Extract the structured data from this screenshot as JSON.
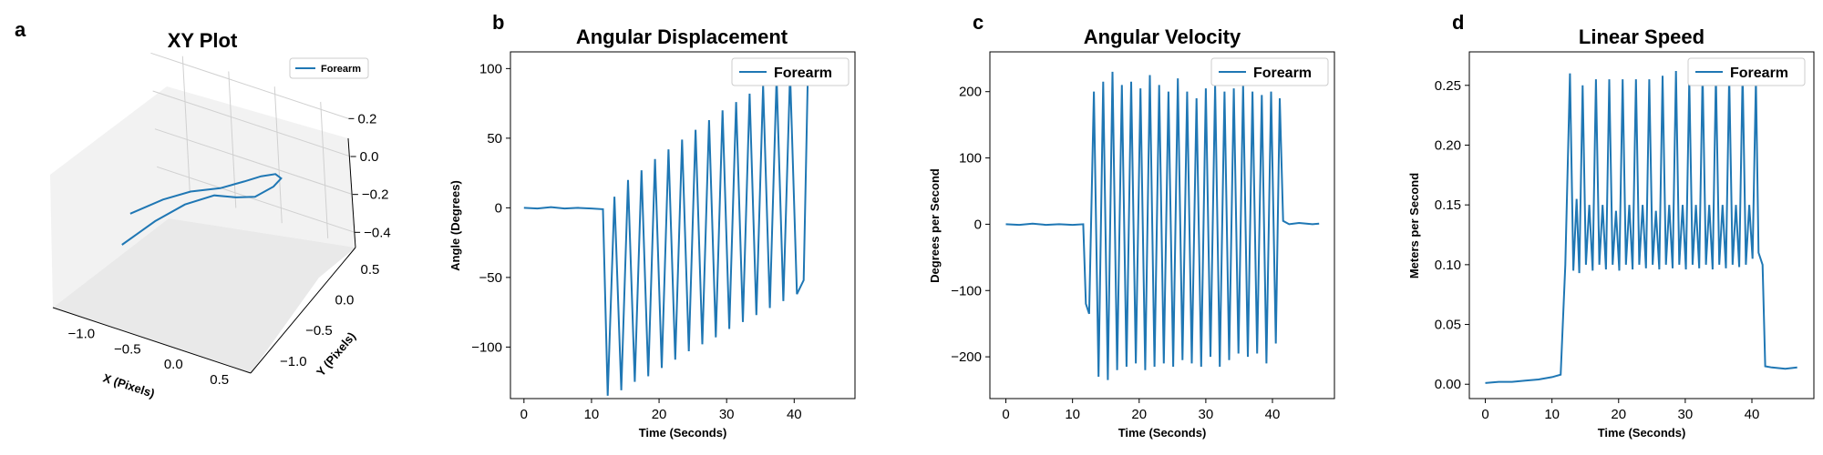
{
  "chart_data": [
    {
      "panel_label": "a",
      "type": "line",
      "projection": "3d",
      "title": "XY Plot",
      "xlabel": "X (Pixels)",
      "ylabel": "Y (Pixels)",
      "zlabel": "",
      "x_ticks": [
        "−1.0",
        "−0.5",
        "0.0",
        "0.5"
      ],
      "y_ticks": [
        "−1.0",
        "−0.5",
        "0.0",
        "0.5"
      ],
      "z_ticks": [
        "−0.4",
        "−0.2",
        "0.0",
        "0.2"
      ],
      "xlim": [
        -1.35,
        0.8
      ],
      "ylim": [
        -1.3,
        0.75
      ],
      "zlim": [
        -0.48,
        0.24
      ],
      "legend": [
        "Forearm"
      ],
      "legend_position": "top-right",
      "series": [
        {
          "name": "Forearm",
          "color": "#1f77b4",
          "x": [
            -1.1,
            -0.85,
            -0.6,
            -0.3,
            0.0,
            0.25,
            0.5,
            0.65,
            0.5,
            0.2,
            -0.1,
            -0.4,
            -0.7,
            -0.95,
            -1.15
          ],
          "y": [
            -0.2,
            0.0,
            0.1,
            0.15,
            0.1,
            0.0,
            -0.15,
            -0.3,
            -0.2,
            -0.05,
            0.1,
            0.2,
            0.15,
            0.0,
            -0.3
          ],
          "z": [
            -0.3,
            -0.25,
            -0.2,
            -0.15,
            -0.05,
            0.05,
            0.15,
            0.2,
            0.1,
            -0.05,
            -0.15,
            -0.22,
            -0.3,
            -0.38,
            -0.44
          ]
        }
      ]
    },
    {
      "panel_label": "b",
      "type": "line",
      "title": "Angular Displacement",
      "xlabel": "Time (Seconds)",
      "ylabel": "Angle (Degrees)",
      "xlim": [
        -2,
        49
      ],
      "ylim": [
        -137,
        112
      ],
      "x_ticks": [
        0,
        10,
        20,
        30,
        40
      ],
      "y_ticks": [
        100,
        50,
        0,
        -50,
        -100
      ],
      "y_tick_labels": [
        "100",
        "50",
        "0",
        "−50",
        "−100"
      ],
      "legend": [
        "Forearm"
      ],
      "legend_position": "top-right",
      "series": [
        {
          "name": "Forearm",
          "color": "#1f77b4",
          "x": [
            0,
            2,
            4,
            6,
            8,
            10,
            11.7,
            12.4,
            13.4,
            14.4,
            15.4,
            16.4,
            17.4,
            18.4,
            19.4,
            20.4,
            21.4,
            22.4,
            23.4,
            24.4,
            25.4,
            26.4,
            27.4,
            28.4,
            29.4,
            30.4,
            31.4,
            32.4,
            33.4,
            34.4,
            35.4,
            36.4,
            37.4,
            38.4,
            39.4,
            40.4,
            41.4,
            42.0
          ],
          "y": [
            0,
            -0.5,
            0.5,
            -0.5,
            0,
            -0.5,
            -1,
            -135,
            8,
            -131,
            20,
            -125,
            27,
            -121,
            35,
            -115,
            42,
            -109,
            49,
            -103,
            56,
            -98,
            63,
            -93,
            70,
            -87,
            76,
            -82,
            82,
            -77,
            88,
            -72,
            94,
            -67,
            97,
            -62,
            -52,
            90
          ]
        }
      ]
    },
    {
      "panel_label": "c",
      "type": "line",
      "title": "Angular Velocity",
      "xlabel": "Time (Seconds)",
      "ylabel": "Degrees per Second",
      "xlim": [
        -2.4,
        49.3
      ],
      "ylim": [
        -263,
        260
      ],
      "x_ticks": [
        0,
        10,
        20,
        30,
        40
      ],
      "y_ticks": [
        200,
        100,
        0,
        -100,
        -200
      ],
      "y_tick_labels": [
        "200",
        "100",
        "0",
        "−100",
        "−200"
      ],
      "legend": [
        "Forearm"
      ],
      "legend_position": "top-right",
      "series": [
        {
          "name": "Forearm",
          "color": "#1f77b4",
          "x": [
            0,
            2,
            4,
            6,
            8,
            10,
            11.6,
            12.0,
            12.5,
            13.2,
            13.9,
            14.6,
            15.3,
            16.0,
            16.7,
            17.4,
            18.1,
            18.8,
            19.5,
            20.2,
            20.9,
            21.6,
            22.3,
            23.0,
            23.7,
            24.4,
            25.1,
            25.8,
            26.5,
            27.2,
            27.9,
            28.6,
            29.3,
            30.0,
            30.7,
            31.4,
            32.1,
            32.8,
            33.5,
            34.2,
            34.9,
            35.6,
            36.3,
            37.0,
            37.7,
            38.4,
            39.1,
            39.8,
            40.5,
            41.1,
            41.6,
            42.5,
            44,
            46,
            47
          ],
          "y": [
            0,
            -1,
            1,
            -1,
            0,
            -1,
            0,
            -120,
            -135,
            200,
            -230,
            215,
            -235,
            230,
            -220,
            210,
            -215,
            215,
            -210,
            205,
            -220,
            225,
            -215,
            210,
            -210,
            200,
            -215,
            220,
            -205,
            200,
            -210,
            190,
            -215,
            205,
            -200,
            210,
            -215,
            200,
            -205,
            205,
            -195,
            210,
            -200,
            200,
            -195,
            195,
            -210,
            200,
            -180,
            190,
            5,
            0,
            2,
            0,
            1
          ]
        }
      ]
    },
    {
      "panel_label": "d",
      "type": "line",
      "title": "Linear Speed",
      "xlabel": "Time (Seconds)",
      "ylabel": "Meters per Second",
      "xlim": [
        -2.4,
        49.3
      ],
      "ylim": [
        -0.012,
        0.278
      ],
      "x_ticks": [
        0,
        10,
        20,
        30,
        40
      ],
      "y_ticks": [
        0.25,
        0.2,
        0.15,
        0.1,
        0.05,
        0.0
      ],
      "y_tick_labels": [
        "0.25",
        "0.20",
        "0.15",
        "0.10",
        "0.05",
        "0.00"
      ],
      "legend": [
        "Forearm"
      ],
      "legend_position": "top-right",
      "series": [
        {
          "name": "Forearm",
          "color": "#1f77b4",
          "x": [
            0,
            2,
            4,
            6,
            8,
            10,
            11.3,
            12.0,
            12.7,
            13.2,
            13.7,
            14.1,
            14.6,
            15.1,
            15.6,
            16.1,
            16.6,
            17.1,
            17.6,
            18.1,
            18.6,
            19.1,
            19.6,
            20.1,
            20.6,
            21.1,
            21.6,
            22.1,
            22.6,
            23.1,
            23.6,
            24.1,
            24.6,
            25.1,
            25.6,
            26.1,
            26.6,
            27.1,
            27.6,
            28.1,
            28.6,
            29.1,
            29.6,
            30.1,
            30.6,
            31.1,
            31.6,
            32.1,
            32.6,
            33.1,
            33.6,
            34.1,
            34.6,
            35.1,
            35.6,
            36.1,
            36.6,
            37.1,
            37.6,
            38.1,
            38.6,
            39.1,
            39.6,
            40.1,
            40.6,
            41.0,
            41.6,
            42.0,
            43,
            45,
            46.8
          ],
          "y": [
            0.001,
            0.002,
            0.002,
            0.003,
            0.004,
            0.006,
            0.008,
            0.1,
            0.26,
            0.095,
            0.155,
            0.093,
            0.25,
            0.1,
            0.15,
            0.095,
            0.255,
            0.1,
            0.15,
            0.096,
            0.255,
            0.1,
            0.145,
            0.095,
            0.255,
            0.1,
            0.15,
            0.096,
            0.255,
            0.1,
            0.15,
            0.097,
            0.255,
            0.1,
            0.145,
            0.096,
            0.258,
            0.1,
            0.15,
            0.097,
            0.262,
            0.1,
            0.15,
            0.096,
            0.255,
            0.1,
            0.15,
            0.097,
            0.26,
            0.1,
            0.15,
            0.096,
            0.258,
            0.1,
            0.15,
            0.097,
            0.258,
            0.1,
            0.15,
            0.098,
            0.26,
            0.1,
            0.15,
            0.105,
            0.255,
            0.11,
            0.1,
            0.015,
            0.014,
            0.013,
            0.014
          ]
        }
      ]
    }
  ]
}
